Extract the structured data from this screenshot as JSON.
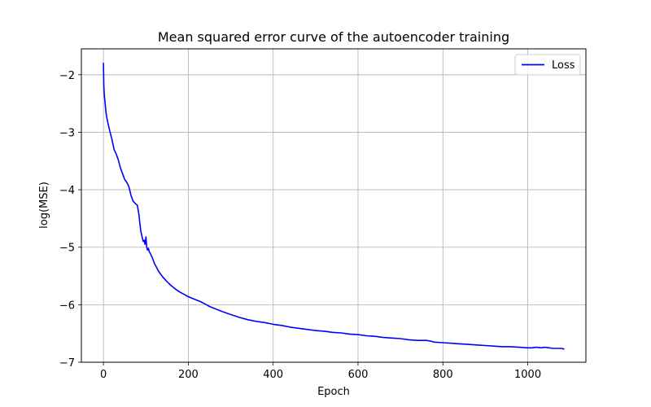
{
  "chart_data": {
    "type": "line",
    "title": "Mean squared error curve of the autoencoder training",
    "xlabel": "Epoch",
    "ylabel": "log(MSE)",
    "xlim": [
      -52,
      1137
    ],
    "ylim": [
      -7.0,
      -1.55
    ],
    "xticks": [
      0,
      200,
      400,
      600,
      800,
      1000
    ],
    "yticks": [
      -7,
      -6,
      -5,
      -4,
      -3,
      -2
    ],
    "xtick_labels": [
      "0",
      "200",
      "400",
      "600",
      "800",
      "1000"
    ],
    "ytick_labels": [
      "−7",
      "−6",
      "−5",
      "−4",
      "−3",
      "−2"
    ],
    "grid": true,
    "legend_position": "upper right",
    "series": [
      {
        "name": "Loss",
        "color": "#0000ff",
        "x": [
          0,
          1,
          2,
          4,
          6,
          8,
          10,
          15,
          20,
          25,
          30,
          35,
          40,
          45,
          50,
          55,
          60,
          65,
          70,
          75,
          80,
          84,
          86,
          88,
          90,
          92,
          94,
          96,
          98,
          100,
          102,
          104,
          106,
          108,
          110,
          115,
          120,
          125,
          130,
          140,
          150,
          160,
          170,
          180,
          190,
          200,
          210,
          220,
          230,
          240,
          250,
          260,
          280,
          300,
          320,
          340,
          360,
          380,
          400,
          420,
          440,
          460,
          480,
          500,
          520,
          540,
          560,
          580,
          600,
          620,
          640,
          660,
          680,
          700,
          720,
          740,
          760,
          770,
          780,
          800,
          820,
          840,
          860,
          880,
          900,
          920,
          940,
          960,
          980,
          1000,
          1010,
          1020,
          1030,
          1040,
          1050,
          1060,
          1070,
          1080,
          1085
        ],
        "y": [
          -1.8,
          -2.2,
          -2.35,
          -2.5,
          -2.65,
          -2.75,
          -2.82,
          -2.98,
          -3.12,
          -3.3,
          -3.38,
          -3.48,
          -3.62,
          -3.72,
          -3.82,
          -3.87,
          -3.95,
          -4.1,
          -4.2,
          -4.24,
          -4.27,
          -4.45,
          -4.6,
          -4.72,
          -4.78,
          -4.85,
          -4.9,
          -4.88,
          -4.95,
          -4.82,
          -5.0,
          -5.05,
          -5.02,
          -5.08,
          -5.1,
          -5.18,
          -5.28,
          -5.35,
          -5.42,
          -5.52,
          -5.6,
          -5.67,
          -5.73,
          -5.78,
          -5.82,
          -5.86,
          -5.89,
          -5.92,
          -5.95,
          -5.99,
          -6.03,
          -6.06,
          -6.12,
          -6.17,
          -6.22,
          -6.26,
          -6.29,
          -6.31,
          -6.34,
          -6.36,
          -6.39,
          -6.41,
          -6.43,
          -6.45,
          -6.46,
          -6.48,
          -6.49,
          -6.51,
          -6.52,
          -6.54,
          -6.55,
          -6.57,
          -6.58,
          -6.59,
          -6.61,
          -6.62,
          -6.62,
          -6.63,
          -6.65,
          -6.66,
          -6.67,
          -6.68,
          -6.69,
          -6.7,
          -6.71,
          -6.72,
          -6.73,
          -6.73,
          -6.74,
          -6.75,
          -6.75,
          -6.74,
          -6.75,
          -6.74,
          -6.75,
          -6.76,
          -6.76,
          -6.76,
          -6.77
        ]
      }
    ]
  }
}
